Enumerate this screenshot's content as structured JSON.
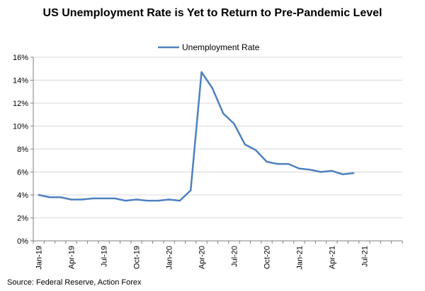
{
  "chart_data": {
    "type": "line",
    "title": "US Unemployment Rate is Yet to Return to Pre-Pandemic Level",
    "xlabel": "",
    "ylabel": "",
    "ylim": [
      0,
      16
    ],
    "y_ticks": [
      "0%",
      "2%",
      "4%",
      "6%",
      "8%",
      "10%",
      "12%",
      "14%",
      "16%"
    ],
    "x_ticks": [
      "Jan-19",
      "Apr-19",
      "Jul-19",
      "Oct-19",
      "Jan-20",
      "Apr-20",
      "Jul-20",
      "Oct-20",
      "Jan-21",
      "Apr-21",
      "Jul-21"
    ],
    "legend": "top-center",
    "grid": "horizontal",
    "series": [
      {
        "name": "Unemployment Rate",
        "color": "#4f81bd",
        "x": [
          "Jan-19",
          "Feb-19",
          "Mar-19",
          "Apr-19",
          "May-19",
          "Jun-19",
          "Jul-19",
          "Aug-19",
          "Sep-19",
          "Oct-19",
          "Nov-19",
          "Dec-19",
          "Jan-20",
          "Feb-20",
          "Mar-20",
          "Apr-20",
          "May-20",
          "Jun-20",
          "Jul-20",
          "Aug-20",
          "Sep-20",
          "Oct-20",
          "Nov-20",
          "Dec-20",
          "Jan-21",
          "Feb-21",
          "Mar-21",
          "Apr-21",
          "May-21",
          "Jun-21"
        ],
        "values": [
          4.0,
          3.8,
          3.8,
          3.6,
          3.6,
          3.7,
          3.7,
          3.7,
          3.5,
          3.6,
          3.5,
          3.5,
          3.6,
          3.5,
          4.4,
          14.7,
          13.3,
          11.1,
          10.2,
          8.4,
          7.9,
          6.9,
          6.7,
          6.7,
          6.3,
          6.2,
          6.0,
          6.1,
          5.8,
          5.9
        ]
      }
    ]
  },
  "source": "Source: Federal Reserve, Action Forex"
}
